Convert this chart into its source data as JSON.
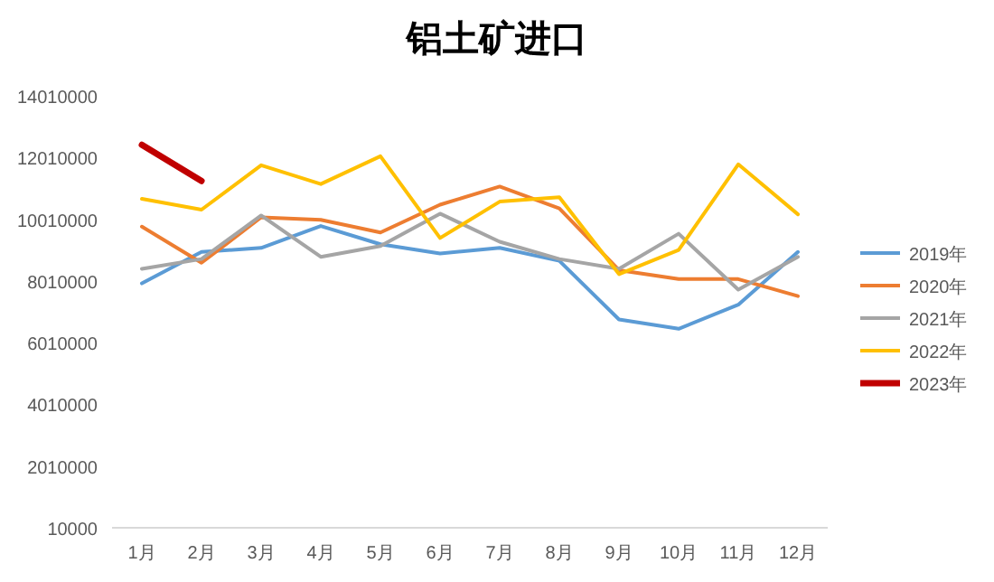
{
  "chart_data": {
    "type": "line",
    "title": "铝土矿进口",
    "categories": [
      "1月",
      "2月",
      "3月",
      "4月",
      "5月",
      "6月",
      "7月",
      "8月",
      "9月",
      "10月",
      "11月",
      "12月"
    ],
    "ylim": [
      10000,
      14010000
    ],
    "yticks": [
      10000,
      2010000,
      4010000,
      6010000,
      8010000,
      10010000,
      12010000,
      14010000
    ],
    "grid": false,
    "legend": "right",
    "marker": "none",
    "series": [
      {
        "name": "2019年",
        "color": "#5b9bd5",
        "values": [
          7930000,
          8950000,
          9080000,
          9790000,
          9200000,
          8900000,
          9080000,
          8660000,
          6760000,
          6460000,
          7240000,
          8950000
        ]
      },
      {
        "name": "2020年",
        "color": "#ed7d31",
        "values": [
          9770000,
          8600000,
          10070000,
          9990000,
          9580000,
          10480000,
          11070000,
          10360000,
          8360000,
          8070000,
          8070000,
          7520000
        ]
      },
      {
        "name": "2021年",
        "color": "#a5a5a5",
        "values": [
          8400000,
          8720000,
          10130000,
          8790000,
          9140000,
          10190000,
          9280000,
          8720000,
          8400000,
          9540000,
          7730000,
          8790000
        ]
      },
      {
        "name": "2022年",
        "color": "#ffc000",
        "values": [
          10670000,
          10320000,
          11760000,
          11150000,
          12050000,
          9400000,
          10580000,
          10720000,
          8230000,
          9010000,
          11790000,
          10170000
        ]
      },
      {
        "name": "2023年",
        "color": "#c00000",
        "values": [
          12420000,
          11250000,
          null,
          null,
          null,
          null,
          null,
          null,
          null,
          null,
          null,
          null
        ]
      }
    ]
  }
}
